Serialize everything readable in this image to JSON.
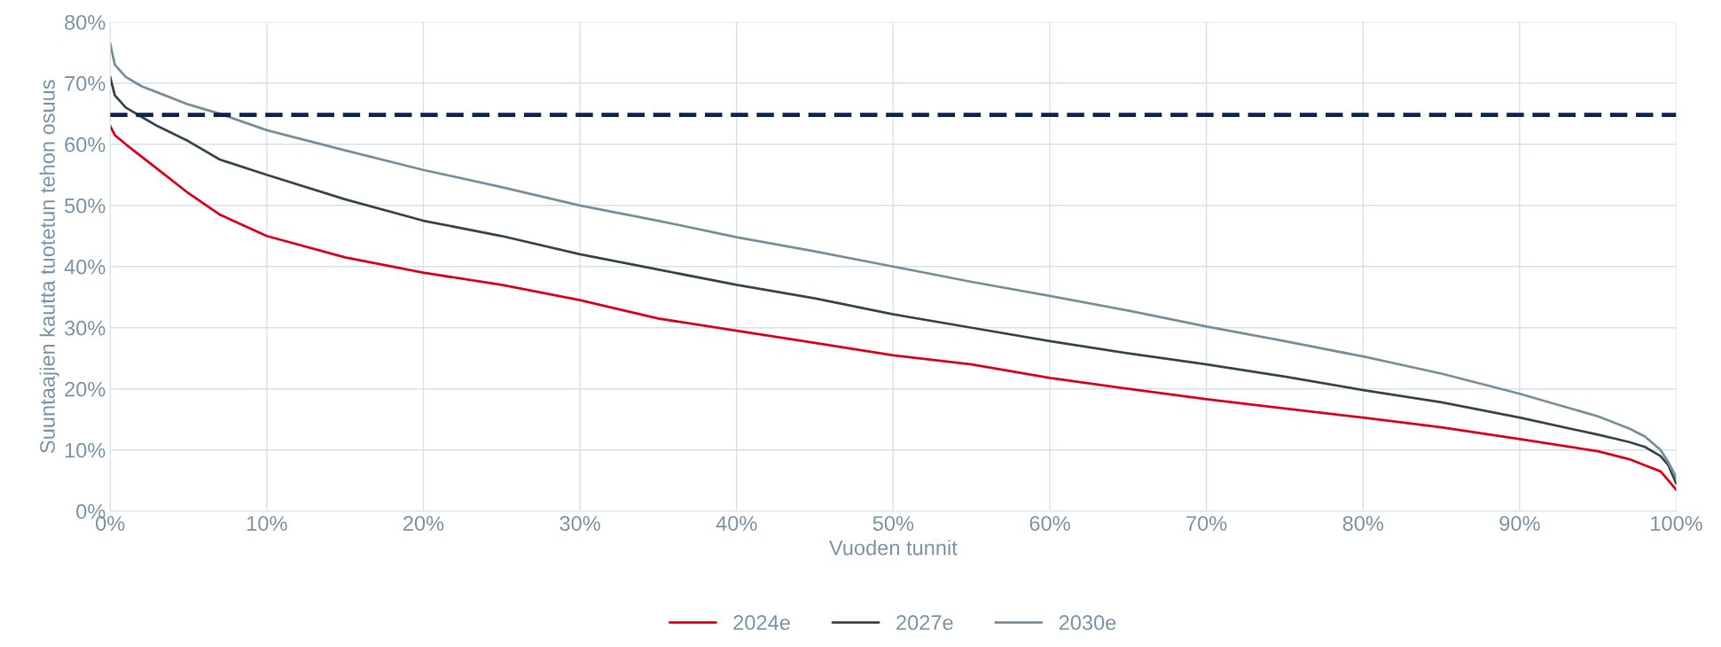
{
  "chart_data": {
    "type": "line",
    "xlabel": "Vuoden tunnit",
    "ylabel": "Suuntaajien kautta tuotetun tehon osuus",
    "xlim": [
      0,
      100
    ],
    "ylim": [
      0,
      80
    ],
    "xticks": [
      {
        "value": 0,
        "label": "0%"
      },
      {
        "value": 10,
        "label": "10%"
      },
      {
        "value": 20,
        "label": "20%"
      },
      {
        "value": 30,
        "label": "30%"
      },
      {
        "value": 40,
        "label": "40%"
      },
      {
        "value": 50,
        "label": "50%"
      },
      {
        "value": 60,
        "label": "60%"
      },
      {
        "value": 70,
        "label": "70%"
      },
      {
        "value": 80,
        "label": "80%"
      },
      {
        "value": 90,
        "label": "90%"
      },
      {
        "value": 100,
        "label": "100%"
      }
    ],
    "yticks": [
      {
        "value": 0,
        "label": "0%"
      },
      {
        "value": 10,
        "label": "10%"
      },
      {
        "value": 20,
        "label": "20%"
      },
      {
        "value": 30,
        "label": "30%"
      },
      {
        "value": 40,
        "label": "40%"
      },
      {
        "value": 50,
        "label": "50%"
      },
      {
        "value": 60,
        "label": "60%"
      },
      {
        "value": 70,
        "label": "70%"
      },
      {
        "value": 80,
        "label": "80%"
      }
    ],
    "x": [
      0,
      0.3,
      1,
      2,
      3,
      5,
      7,
      10,
      15,
      20,
      25,
      30,
      35,
      40,
      45,
      50,
      55,
      60,
      65,
      70,
      75,
      80,
      85,
      90,
      95,
      97,
      98,
      99,
      99.5,
      100
    ],
    "series": [
      {
        "name": "2024e",
        "color": "#e0001b",
        "values": [
          63,
          61.5,
          60,
          58,
          56,
          52,
          48.5,
          45,
          41.5,
          39,
          37,
          34.5,
          31.5,
          29.5,
          27.5,
          25.5,
          24,
          21.8,
          20,
          18.3,
          16.8,
          15.3,
          13.7,
          11.8,
          9.8,
          8.5,
          7.5,
          6.5,
          5,
          3.5
        ]
      },
      {
        "name": "2027e",
        "color": "#37474f",
        "values": [
          71,
          68,
          66,
          64.5,
          63,
          60.5,
          57.5,
          55,
          51,
          47.5,
          45,
          42,
          39.5,
          37,
          34.8,
          32.2,
          30,
          27.8,
          25.8,
          24,
          22,
          19.8,
          17.8,
          15.3,
          12.5,
          11.3,
          10.5,
          9,
          7.5,
          4.5
        ]
      },
      {
        "name": "2030e",
        "color": "#78909c",
        "values": [
          76.5,
          73,
          71,
          69.5,
          68.5,
          66.5,
          65,
          62.3,
          59,
          55.8,
          53,
          50,
          47.5,
          44.8,
          42.5,
          40,
          37.5,
          35.2,
          32.8,
          30.2,
          27.8,
          25.3,
          22.5,
          19.2,
          15.5,
          13.5,
          12.2,
          10,
          8,
          5.5
        ]
      }
    ],
    "ref_lines": [
      {
        "axis": "y",
        "value": 64.8,
        "color": "#0b2355",
        "line_style": "dashed"
      }
    ],
    "grid": true,
    "legend": "bottom"
  }
}
